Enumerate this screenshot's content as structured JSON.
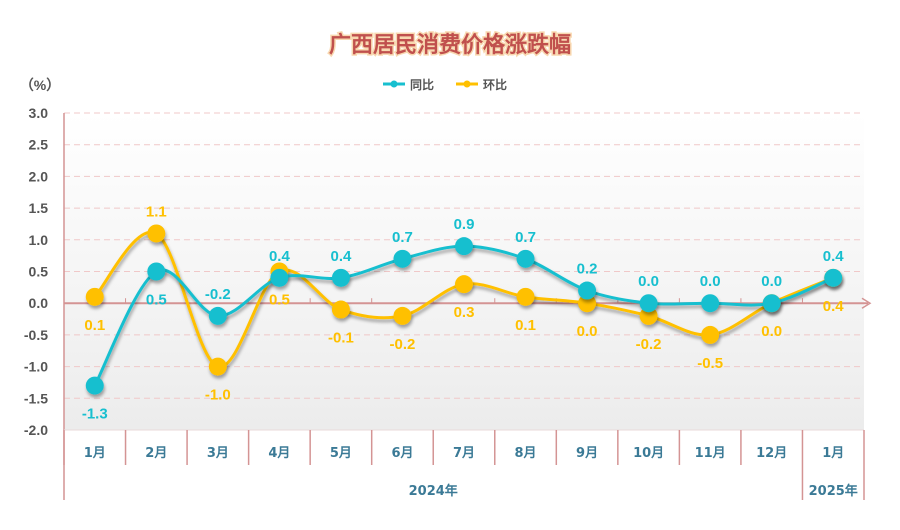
{
  "chart_data": {
    "type": "line",
    "title": "广西居民消费价格涨跌幅",
    "ylabel": "（%）",
    "ylim": [
      -2.0,
      3.0
    ],
    "yticks": [
      "3.0",
      "2.5",
      "2.0",
      "1.5",
      "1.0",
      "0.5",
      "0.0",
      "-0.5",
      "-1.0",
      "-1.5",
      "-2.0"
    ],
    "categories": [
      "1月",
      "2月",
      "3月",
      "4月",
      "5月",
      "6月",
      "7月",
      "8月",
      "9月",
      "10月",
      "11月",
      "12月",
      "1月"
    ],
    "year_groups": [
      {
        "label": "2024年",
        "span": 12
      },
      {
        "label": "2025年",
        "span": 1
      }
    ],
    "grid": true,
    "legend_position": "top",
    "series": [
      {
        "name": "同比",
        "color": "#17bfcf",
        "values": [
          -1.3,
          0.5,
          -0.2,
          0.4,
          0.4,
          0.7,
          0.9,
          0.7,
          0.2,
          0.0,
          0.0,
          0.0,
          0.4
        ],
        "labels": [
          "-1.3",
          "0.5",
          "-0.2",
          "0.4",
          "0.4",
          "0.7",
          "0.9",
          "0.7",
          "0.2",
          "0.0",
          "0.0",
          "0.0",
          "0.4"
        ]
      },
      {
        "name": "环比",
        "color": "#ffc000",
        "values": [
          0.1,
          1.1,
          -1.0,
          0.5,
          -0.1,
          -0.2,
          0.3,
          0.1,
          0.0,
          -0.2,
          -0.5,
          0.0,
          0.4
        ],
        "labels": [
          "0.1",
          "1.1",
          "-1.0",
          "0.5",
          "-0.1",
          "-0.2",
          "0.3",
          "0.1",
          "0.0",
          "-0.2",
          "-0.5",
          "0.0",
          "0.4"
        ]
      }
    ]
  }
}
